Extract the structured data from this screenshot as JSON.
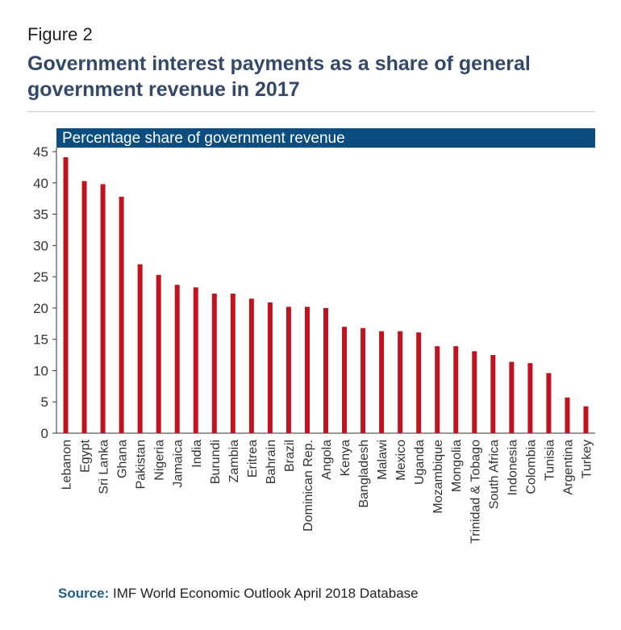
{
  "figure_label": "Figure 2",
  "title": "Government interest payments as a share of general government revenue in 2017",
  "source_label": "Source:",
  "source_text": "IMF World Economic Outlook April 2018 Database",
  "colors": {
    "bar": "#c1121f",
    "header": "#0a4d7e",
    "title": "#34496a",
    "source_label": "#1f5d8c"
  },
  "chart_data": {
    "type": "bar",
    "title": "",
    "subtitle": "Percentage share of government revenue",
    "xlabel": "",
    "ylabel": "",
    "ylim": [
      0,
      45
    ],
    "yticks": [
      0,
      5,
      10,
      15,
      20,
      25,
      30,
      35,
      40,
      45
    ],
    "grid": false,
    "categories": [
      "Lebanon",
      "Egypt",
      "Sri Lanka",
      "Ghana",
      "Pakistan",
      "Nigeria",
      "Jamaica",
      "India",
      "Burundi",
      "Zambia",
      "Eritrea",
      "Bahrain",
      "Brazil",
      "Dominican Rep.",
      "Angola",
      "Kenya",
      "Bangladesh",
      "Malawi",
      "Mexico",
      "Uganda",
      "Mozambique",
      "Mongolia",
      "Trinidad & Tobago",
      "South Africa",
      "Indonesia",
      "Colombia",
      "Tunisia",
      "Argentina",
      "Turkey"
    ],
    "values": [
      44.1,
      40.3,
      39.8,
      37.8,
      27.0,
      25.3,
      23.7,
      23.3,
      22.3,
      22.3,
      21.5,
      20.9,
      20.2,
      20.2,
      20.0,
      17.0,
      16.8,
      16.3,
      16.3,
      16.1,
      13.9,
      13.9,
      13.1,
      12.5,
      11.4,
      11.2,
      9.6,
      5.7,
      4.3
    ]
  }
}
